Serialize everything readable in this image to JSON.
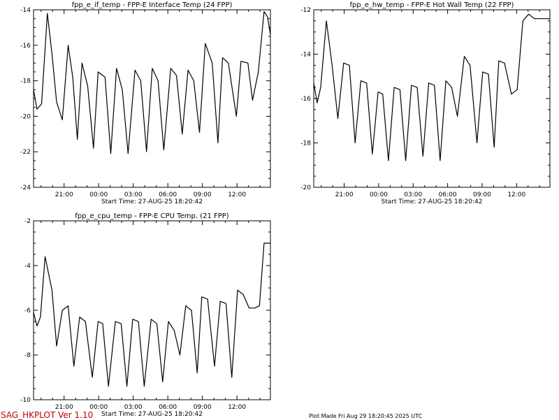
{
  "footer": {
    "left": "SAG_HKPLOT  Ver 1.10",
    "left_color": "#c00000",
    "right": "Plot Made Fri Aug 29 18:20:45 2025 UTC"
  },
  "chart_data": [
    {
      "type": "line",
      "title": "fpp_e_if_temp - FPP-E Interface Temp (24 FPP)",
      "xlabel": "Start Time: 27-AUG-25  18:20:42",
      "x_unit": "hours since start",
      "xlim": [
        0,
        20.55
      ],
      "ylim": [
        -24,
        -14
      ],
      "xtick_labels": [
        "21:00",
        "00:00",
        "03:00",
        "06:00",
        "09:00",
        "12:00"
      ],
      "ytick_labels": [
        "-24",
        "-22",
        "-20",
        "-18",
        "-16",
        "-14"
      ],
      "grid": false,
      "series": [
        {
          "x": [
            0.0,
            0.3,
            0.7,
            1.2,
            1.6,
            2.0,
            2.5,
            3.0,
            3.4,
            3.8,
            4.2,
            4.7,
            5.2,
            5.6,
            6.2,
            6.7,
            7.2,
            7.7,
            8.2,
            8.8,
            9.3,
            9.8,
            10.3,
            10.8,
            11.3,
            11.9,
            12.4,
            12.9,
            13.4,
            13.9,
            14.4,
            14.9,
            15.5,
            16.0,
            16.4,
            16.9,
            17.6,
            18.0,
            18.6,
            19.0,
            19.5,
            20.0,
            20.3,
            20.55
          ],
          "y": [
            -18.5,
            -19.6,
            -19.3,
            -14.2,
            -16.5,
            -19.2,
            -20.2,
            -16.0,
            -17.8,
            -21.3,
            -17.0,
            -18.3,
            -21.8,
            -17.5,
            -17.8,
            -22.1,
            -17.3,
            -18.5,
            -22.1,
            -17.4,
            -18.0,
            -22.0,
            -17.3,
            -18.0,
            -21.9,
            -17.3,
            -17.7,
            -21.0,
            -17.4,
            -18.0,
            -20.9,
            -15.9,
            -17.0,
            -21.5,
            -16.7,
            -17.0,
            -20.0,
            -16.9,
            -17.0,
            -19.1,
            -17.5,
            -14.1,
            -14.4,
            -15.4
          ]
        }
      ]
    },
    {
      "type": "line",
      "title": "fpp_e_hw_temp - FPP-E Hot Wall Temp (22 FPP)",
      "xlabel": "Start Time: 27-AUG-25  18:20:42",
      "x_unit": "hours since start",
      "xlim": [
        0,
        20.55
      ],
      "ylim": [
        -20,
        -12
      ],
      "xtick_labels": [
        "21:00",
        "00:00",
        "03:00",
        "06:00",
        "09:00",
        "12:00"
      ],
      "ytick_labels": [
        "-20",
        "-18",
        "-16",
        "-14",
        "-12"
      ],
      "grid": false,
      "series": [
        {
          "x": [
            0.0,
            0.3,
            0.6,
            1.1,
            1.6,
            2.1,
            2.6,
            3.1,
            3.6,
            4.1,
            4.6,
            5.1,
            5.6,
            6.0,
            6.5,
            7.0,
            7.5,
            8.0,
            8.5,
            9.0,
            9.5,
            10.0,
            10.5,
            11.0,
            11.5,
            12.0,
            12.5,
            13.1,
            13.6,
            14.2,
            14.7,
            15.2,
            15.7,
            16.1,
            16.6,
            17.2,
            17.7,
            18.2,
            18.7,
            19.2,
            19.5,
            20.0,
            20.3,
            20.55
          ],
          "y": [
            -15.3,
            -16.2,
            -15.5,
            -12.5,
            -14.5,
            -16.9,
            -14.4,
            -14.5,
            -18.0,
            -15.2,
            -15.3,
            -18.5,
            -15.7,
            -15.8,
            -18.8,
            -15.5,
            -15.6,
            -18.8,
            -15.4,
            -15.5,
            -18.6,
            -15.3,
            -15.4,
            -18.8,
            -15.2,
            -15.5,
            -16.8,
            -14.1,
            -14.5,
            -18.0,
            -14.8,
            -14.9,
            -18.2,
            -14.3,
            -14.4,
            -15.8,
            -15.6,
            -12.5,
            -12.2,
            -12.4,
            -12.4,
            -12.4,
            -12.4,
            -12.4
          ]
        }
      ]
    },
    {
      "type": "line",
      "title": "fpp_e_cpu_temp - FPP-E CPU Temp. (21 FPP)",
      "xlabel": "Start Time: 27-AUG-25  18:20:42",
      "x_unit": "hours since start",
      "xlim": [
        0,
        20.55
      ],
      "ylim": [
        -10,
        -2
      ],
      "xtick_labels": [
        "21:00",
        "00:00",
        "03:00",
        "06:00",
        "09:00",
        "12:00"
      ],
      "ytick_labels": [
        "-10",
        "-8",
        "-6",
        "-4",
        "-2"
      ],
      "grid": false,
      "series": [
        {
          "x": [
            0.0,
            0.3,
            0.6,
            1.0,
            1.6,
            2.0,
            2.5,
            3.0,
            3.5,
            4.0,
            4.5,
            5.1,
            5.6,
            6.0,
            6.5,
            7.1,
            7.6,
            8.1,
            8.6,
            9.1,
            9.6,
            10.2,
            10.7,
            11.2,
            11.7,
            12.2,
            12.7,
            13.2,
            13.7,
            14.2,
            14.6,
            15.1,
            15.7,
            16.2,
            16.7,
            17.2,
            17.7,
            18.2,
            18.7,
            19.2,
            19.6,
            20.0,
            20.3,
            20.55
          ],
          "y": [
            -6.1,
            -6.7,
            -6.3,
            -3.6,
            -5.1,
            -7.6,
            -6.0,
            -5.8,
            -8.5,
            -6.3,
            -6.5,
            -9.0,
            -6.5,
            -6.6,
            -9.4,
            -6.5,
            -6.6,
            -9.4,
            -6.4,
            -6.5,
            -9.4,
            -6.4,
            -6.6,
            -9.2,
            -6.5,
            -6.9,
            -8.0,
            -5.8,
            -6.0,
            -8.8,
            -5.4,
            -5.5,
            -8.5,
            -5.6,
            -5.7,
            -9.0,
            -5.1,
            -5.3,
            -5.9,
            -5.9,
            -5.8,
            -3.0,
            -3.0,
            -3.0
          ]
        }
      ]
    }
  ]
}
